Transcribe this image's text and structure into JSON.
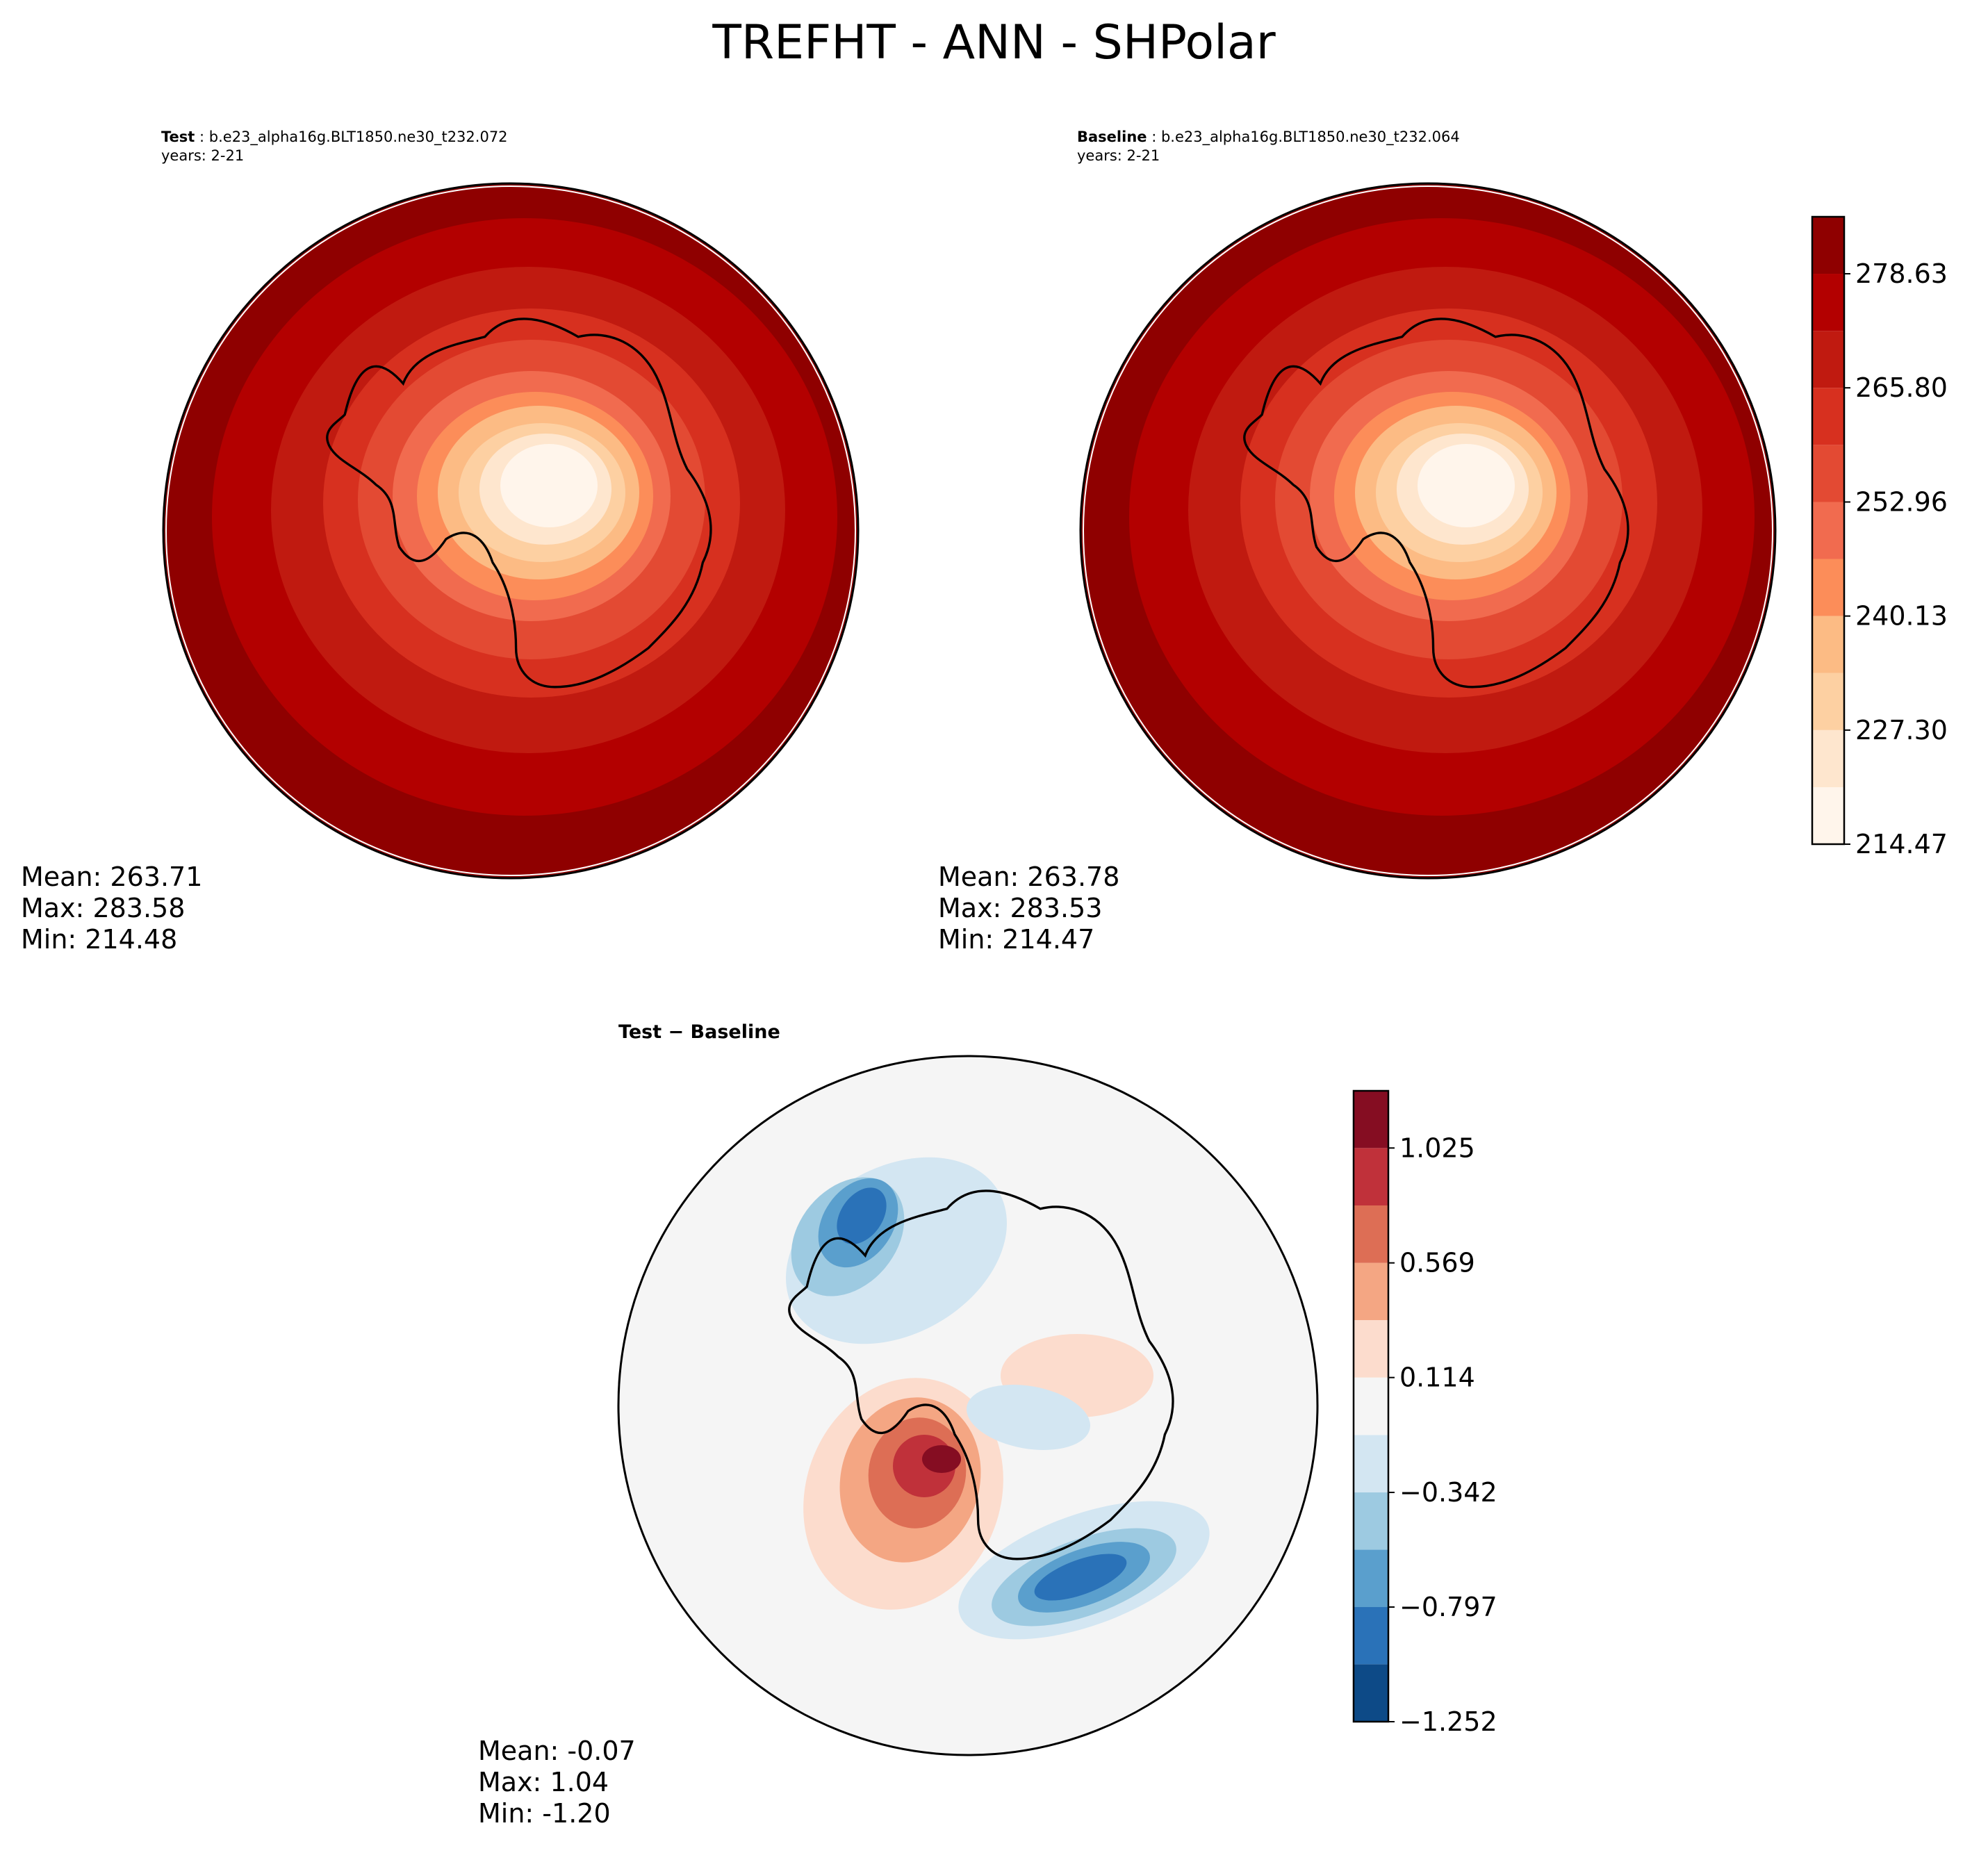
{
  "title": "TREFHT - ANN - SHPolar",
  "panels": {
    "test": {
      "label": "Test",
      "case": "b.e23_alpha16g.BLT1850.ne30_t232.072",
      "years": "years: 2-21",
      "stats": {
        "mean": "Mean: 263.71",
        "max": "Max: 283.58",
        "min": "Min: 214.48"
      }
    },
    "baseline": {
      "label": "Baseline",
      "case": "b.e23_alpha16g.BLT1850.ne30_t232.064",
      "years": "years: 2-21",
      "stats": {
        "mean": "Mean: 263.78",
        "max": "Max: 283.53",
        "min": "Min: 214.47"
      }
    },
    "diff": {
      "label": "Test − Baseline",
      "stats": {
        "mean": "Mean: -0.07",
        "max": "Max:  1.04",
        "min": "Min: -1.20"
      }
    }
  },
  "chart_data": [
    {
      "type": "heatmap",
      "panel": "test",
      "projection": "south-polar-stereographic",
      "colormap": "Reds",
      "colorbar": {
        "levels": [
          214.47,
          220.88,
          227.3,
          233.71,
          240.13,
          246.55,
          252.96,
          259.38,
          265.8,
          272.21,
          278.63,
          285.04
        ],
        "ticks": [
          "278.63",
          "265.80",
          "252.96",
          "240.13",
          "227.30",
          "214.47"
        ],
        "colors": [
          "#fff5eb",
          "#fee6ce",
          "#fdd0a2",
          "#fcbb84",
          "#fc8d59",
          "#f16b4f",
          "#e34a33",
          "#d7301f",
          "#c01a10",
          "#b30000",
          "#8f0000"
        ]
      },
      "stats": {
        "mean": 263.71,
        "max": 283.58,
        "min": 214.48
      }
    },
    {
      "type": "heatmap",
      "panel": "baseline",
      "projection": "south-polar-stereographic",
      "colormap": "Reds",
      "stats": {
        "mean": 263.78,
        "max": 283.53,
        "min": 214.47
      }
    },
    {
      "type": "heatmap",
      "panel": "diff",
      "projection": "south-polar-stereographic",
      "colormap": "RdBu_r",
      "colorbar": {
        "levels": [
          -1.252,
          -1.024,
          -0.797,
          -0.569,
          -0.342,
          -0.114,
          0.114,
          0.342,
          0.569,
          0.797,
          1.025,
          1.252
        ],
        "ticks": [
          "1.025",
          "0.569",
          "0.114",
          "−0.342",
          "−0.797",
          "−1.252"
        ],
        "colors": [
          "#0d4a87",
          "#2a72b8",
          "#5a9fcd",
          "#9dcae1",
          "#d3e6f2",
          "#f5f5f5",
          "#fcdccd",
          "#f4a683",
          "#dd6e55",
          "#c0313a",
          "#850d22"
        ]
      },
      "stats": {
        "mean": -0.07,
        "max": 1.04,
        "min": -1.2
      }
    }
  ]
}
